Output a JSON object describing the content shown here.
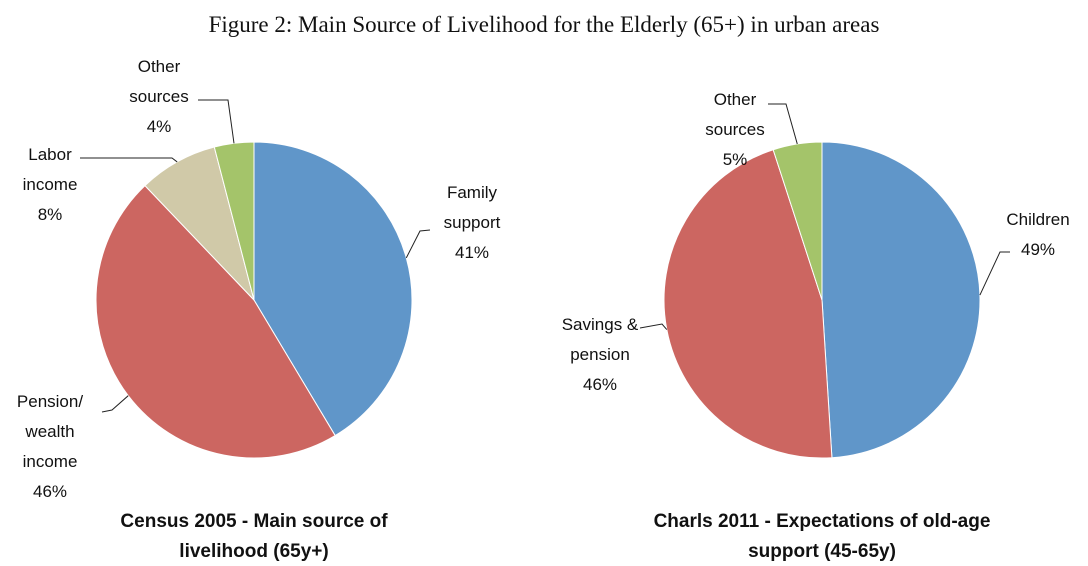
{
  "title": "Figure 2: Main Source of Livelihood for the Elderly (65+) in urban areas",
  "chart_data": [
    {
      "type": "pie",
      "title": "Census 2005 - Main source of livelihood (65y+)",
      "categories": [
        "Family support",
        "Pension/ wealth income",
        "Labor income",
        "Other sources"
      ],
      "values": [
        41,
        46,
        8,
        4
      ],
      "value_labels": [
        "41%",
        "46%",
        "8%",
        "4%"
      ],
      "colors": [
        "#6096c9",
        "#cc6661",
        "#d0c9a8",
        "#a4c46a"
      ]
    },
    {
      "type": "pie",
      "title": "Charls 2011 - Expectations of old-age support (45-65y)",
      "categories": [
        "Children",
        "Savings & pension",
        "Other sources"
      ],
      "values": [
        49,
        46,
        5
      ],
      "value_labels": [
        "49%",
        "46%",
        "5%"
      ],
      "colors": [
        "#6096c9",
        "#cc6661",
        "#a4c46a"
      ]
    }
  ]
}
